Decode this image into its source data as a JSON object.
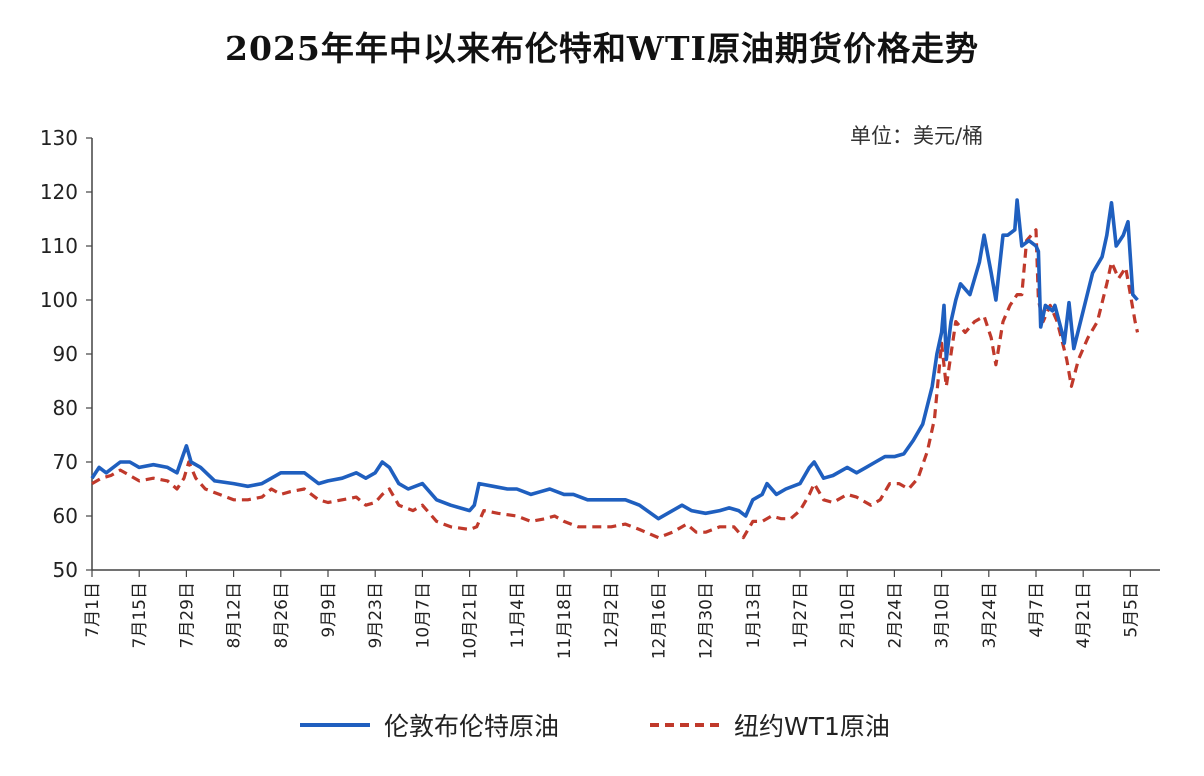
{
  "chart_data": {
    "type": "line",
    "title": "2025年年中以来布伦特和WTI原油期货价格走势",
    "unit": "单位：美元/桶",
    "ylim": [
      50,
      130
    ],
    "yticks": [
      50,
      60,
      70,
      80,
      90,
      100,
      110,
      120,
      130
    ],
    "xticks": [
      "7月1日",
      "7月15日",
      "7月29日",
      "8月12日",
      "8月26日",
      "9月9日",
      "9月23日",
      "10月7日",
      "10月21日",
      "11月4日",
      "11月18日",
      "12月2日",
      "12月16日",
      "12月30日",
      "1月13日",
      "1月27日",
      "2月10日",
      "2月24日",
      "3月10日",
      "3月24日",
      "4月7日",
      "4月21日",
      "5月5日"
    ],
    "legend_position": "bottom",
    "grid": false,
    "colors": {
      "brent": "#1f5fbf",
      "wti": "#c0392b"
    },
    "series": [
      {
        "name": "伦敦布伦特原油",
        "style": "solid",
        "points": [
          [
            0,
            67
          ],
          [
            0.15,
            69
          ],
          [
            0.3,
            68
          ],
          [
            0.6,
            70
          ],
          [
            0.8,
            70
          ],
          [
            1,
            69
          ],
          [
            1.3,
            69.5
          ],
          [
            1.6,
            69
          ],
          [
            1.8,
            68
          ],
          [
            1.92,
            71
          ],
          [
            2,
            73
          ],
          [
            2.1,
            70
          ],
          [
            2.3,
            69
          ],
          [
            2.6,
            66.5
          ],
          [
            3,
            66
          ],
          [
            3.3,
            65.5
          ],
          [
            3.6,
            66
          ],
          [
            3.8,
            67
          ],
          [
            4,
            68
          ],
          [
            4.2,
            68
          ],
          [
            4.5,
            68
          ],
          [
            4.8,
            66
          ],
          [
            5,
            66.5
          ],
          [
            5.3,
            67
          ],
          [
            5.6,
            68
          ],
          [
            5.8,
            67
          ],
          [
            6,
            68
          ],
          [
            6.15,
            70
          ],
          [
            6.3,
            69
          ],
          [
            6.5,
            66
          ],
          [
            6.7,
            65
          ],
          [
            7,
            66
          ],
          [
            7.3,
            63
          ],
          [
            7.6,
            62
          ],
          [
            8,
            61
          ],
          [
            8.1,
            62
          ],
          [
            8.2,
            66
          ],
          [
            8.5,
            65.5
          ],
          [
            8.8,
            65
          ],
          [
            9,
            65
          ],
          [
            9.3,
            64
          ],
          [
            9.5,
            64.5
          ],
          [
            9.7,
            65
          ],
          [
            10,
            64
          ],
          [
            10.2,
            64
          ],
          [
            10.5,
            63
          ],
          [
            10.8,
            63
          ],
          [
            11,
            63
          ],
          [
            11.3,
            63
          ],
          [
            11.6,
            62
          ],
          [
            12,
            59.5
          ],
          [
            12.3,
            61
          ],
          [
            12.5,
            62
          ],
          [
            12.7,
            61
          ],
          [
            13,
            60.5
          ],
          [
            13.3,
            61
          ],
          [
            13.5,
            61.5
          ],
          [
            13.7,
            61
          ],
          [
            13.85,
            60
          ],
          [
            14,
            63
          ],
          [
            14.2,
            64
          ],
          [
            14.3,
            66
          ],
          [
            14.5,
            64
          ],
          [
            14.7,
            65
          ],
          [
            15,
            66
          ],
          [
            15.2,
            69
          ],
          [
            15.3,
            70
          ],
          [
            15.5,
            67
          ],
          [
            15.7,
            67.5
          ],
          [
            16,
            69
          ],
          [
            16.2,
            68
          ],
          [
            16.4,
            69
          ],
          [
            16.6,
            70
          ],
          [
            16.8,
            71
          ],
          [
            17,
            71
          ],
          [
            17.2,
            71.5
          ],
          [
            17.4,
            74
          ],
          [
            17.6,
            77
          ],
          [
            17.8,
            84
          ],
          [
            17.9,
            90
          ],
          [
            18,
            94
          ],
          [
            18.05,
            99
          ],
          [
            18.1,
            89
          ],
          [
            18.2,
            96
          ],
          [
            18.3,
            100
          ],
          [
            18.4,
            103
          ],
          [
            18.6,
            101
          ],
          [
            18.8,
            107
          ],
          [
            18.9,
            112
          ],
          [
            19.05,
            105
          ],
          [
            19.15,
            100
          ],
          [
            19.3,
            112
          ],
          [
            19.4,
            112
          ],
          [
            19.55,
            113
          ],
          [
            19.6,
            118.5
          ],
          [
            19.7,
            110
          ],
          [
            19.85,
            111
          ],
          [
            20,
            110
          ],
          [
            20.05,
            109
          ],
          [
            20.1,
            95
          ],
          [
            20.2,
            99
          ],
          [
            20.35,
            98
          ],
          [
            20.4,
            99
          ],
          [
            20.55,
            94
          ],
          [
            20.6,
            92
          ],
          [
            20.7,
            99.5
          ],
          [
            20.8,
            91
          ],
          [
            21,
            98
          ],
          [
            21.2,
            105
          ],
          [
            21.4,
            108
          ],
          [
            21.5,
            112
          ],
          [
            21.6,
            118
          ],
          [
            21.7,
            110
          ],
          [
            21.85,
            112
          ],
          [
            21.95,
            114.5
          ],
          [
            22.05,
            101
          ],
          [
            22.15,
            100
          ]
        ]
      },
      {
        "name": "纽约WT1原油",
        "style": "dashed",
        "points": [
          [
            0,
            66
          ],
          [
            0.2,
            67
          ],
          [
            0.4,
            67.5
          ],
          [
            0.6,
            68.5
          ],
          [
            0.8,
            67.5
          ],
          [
            1,
            66.5
          ],
          [
            1.3,
            67
          ],
          [
            1.6,
            66.5
          ],
          [
            1.8,
            65
          ],
          [
            1.95,
            67
          ],
          [
            2.05,
            70
          ],
          [
            2.2,
            67
          ],
          [
            2.4,
            65
          ],
          [
            2.7,
            64
          ],
          [
            3,
            63
          ],
          [
            3.3,
            63
          ],
          [
            3.6,
            63.5
          ],
          [
            3.8,
            65
          ],
          [
            4,
            64
          ],
          [
            4.2,
            64.5
          ],
          [
            4.5,
            65
          ],
          [
            4.8,
            63
          ],
          [
            5,
            62.5
          ],
          [
            5.3,
            63
          ],
          [
            5.6,
            63.5
          ],
          [
            5.8,
            62
          ],
          [
            6,
            62.5
          ],
          [
            6.15,
            64
          ],
          [
            6.3,
            65
          ],
          [
            6.5,
            62
          ],
          [
            6.8,
            61
          ],
          [
            7,
            62
          ],
          [
            7.3,
            59
          ],
          [
            7.6,
            58
          ],
          [
            8,
            57.5
          ],
          [
            8.15,
            58
          ],
          [
            8.3,
            61
          ],
          [
            8.6,
            60.5
          ],
          [
            9,
            60
          ],
          [
            9.3,
            59
          ],
          [
            9.6,
            59.5
          ],
          [
            9.8,
            60
          ],
          [
            10,
            59
          ],
          [
            10.3,
            58
          ],
          [
            10.6,
            58
          ],
          [
            11,
            58
          ],
          [
            11.3,
            58.5
          ],
          [
            11.6,
            57.5
          ],
          [
            12,
            56
          ],
          [
            12.3,
            57
          ],
          [
            12.6,
            58.5
          ],
          [
            12.8,
            57
          ],
          [
            13,
            57
          ],
          [
            13.3,
            58
          ],
          [
            13.6,
            58
          ],
          [
            13.8,
            56
          ],
          [
            14,
            59
          ],
          [
            14.2,
            59
          ],
          [
            14.4,
            60
          ],
          [
            14.6,
            59.5
          ],
          [
            14.8,
            59.5
          ],
          [
            15,
            61
          ],
          [
            15.2,
            64
          ],
          [
            15.3,
            66
          ],
          [
            15.5,
            63
          ],
          [
            15.7,
            62.5
          ],
          [
            16,
            64
          ],
          [
            16.2,
            63.5
          ],
          [
            16.5,
            62
          ],
          [
            16.7,
            63
          ],
          [
            16.9,
            66
          ],
          [
            17.1,
            66
          ],
          [
            17.3,
            65
          ],
          [
            17.5,
            67
          ],
          [
            17.7,
            72
          ],
          [
            17.85,
            78
          ],
          [
            18,
            92
          ],
          [
            18.1,
            84
          ],
          [
            18.2,
            90
          ],
          [
            18.3,
            96
          ],
          [
            18.5,
            94
          ],
          [
            18.7,
            96
          ],
          [
            18.9,
            97
          ],
          [
            19.05,
            93
          ],
          [
            19.15,
            88
          ],
          [
            19.3,
            96
          ],
          [
            19.45,
            99
          ],
          [
            19.6,
            101
          ],
          [
            19.7,
            101
          ],
          [
            19.8,
            111
          ],
          [
            20,
            113
          ],
          [
            20.05,
            100
          ],
          [
            20.15,
            96
          ],
          [
            20.3,
            99
          ],
          [
            20.45,
            96
          ],
          [
            20.65,
            89
          ],
          [
            20.75,
            84
          ],
          [
            20.9,
            89
          ],
          [
            21.1,
            93
          ],
          [
            21.3,
            96
          ],
          [
            21.5,
            103
          ],
          [
            21.6,
            107
          ],
          [
            21.75,
            104
          ],
          [
            21.9,
            106
          ],
          [
            22,
            101
          ],
          [
            22.1,
            96
          ],
          [
            22.15,
            94
          ]
        ]
      }
    ]
  }
}
